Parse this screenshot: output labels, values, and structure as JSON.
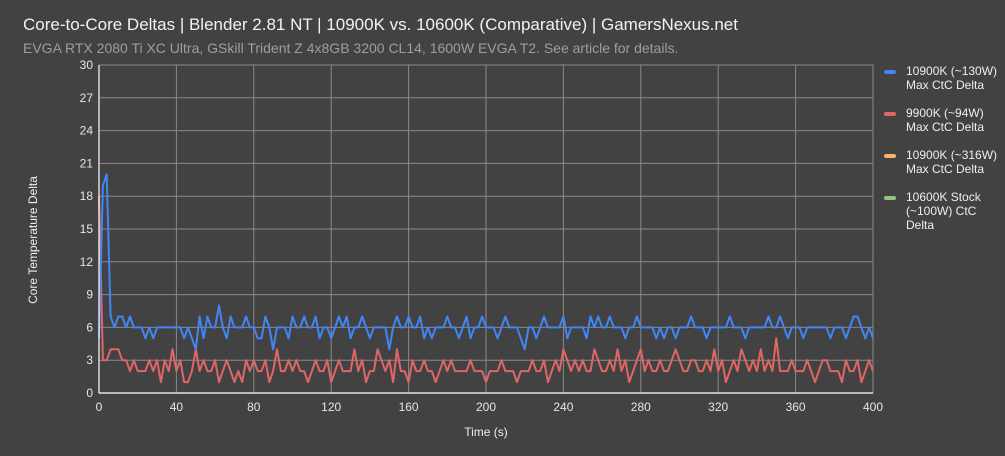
{
  "chart_data": {
    "type": "line",
    "title": "Core-to-Core Deltas | Blender 2.81 NT | 10900K vs. 10600K (Comparative) | GamersNexus.net",
    "subtitle": "EVGA RTX 2080 Ti XC Ultra, GSkill Trident Z 4x8GB 3200 CL14, 1600W EVGA T2. See article for details.",
    "xlabel": "Time (s)",
    "ylabel": "Core Temperature Delta",
    "xlim": [
      0,
      400
    ],
    "ylim": [
      0,
      30
    ],
    "xticks": [
      0,
      40,
      80,
      120,
      160,
      200,
      240,
      280,
      320,
      360,
      400
    ],
    "yticks": [
      0,
      3,
      6,
      9,
      12,
      15,
      18,
      21,
      24,
      27,
      30
    ],
    "grid": true,
    "legend_position": "right",
    "x_step": 2,
    "series": [
      {
        "name": "10900K (~130W) Max CtC Delta",
        "color": "#4285f4",
        "values": [
          5,
          19,
          20,
          7,
          6,
          7,
          7,
          6,
          7,
          6,
          6,
          6,
          5,
          6,
          5,
          6,
          6,
          6,
          6,
          6,
          6,
          6,
          5,
          6,
          5,
          4,
          7,
          5,
          7,
          6,
          6,
          8,
          6,
          5,
          7,
          6,
          6,
          6,
          7,
          6,
          6,
          5,
          5,
          7,
          6,
          4,
          6,
          6,
          6,
          5,
          7,
          6,
          6,
          7,
          6,
          6,
          7,
          5,
          6,
          6,
          5,
          6,
          7,
          6,
          7,
          5,
          6,
          6,
          7,
          6,
          5,
          6,
          6,
          6,
          6,
          4,
          6,
          7,
          6,
          6,
          7,
          6,
          6,
          7,
          5,
          6,
          5,
          6,
          6,
          6,
          7,
          6,
          6,
          5,
          6,
          7,
          5,
          6,
          6,
          7,
          6,
          6,
          6,
          5,
          6,
          7,
          6,
          6,
          6,
          5,
          4,
          6,
          6,
          5,
          6,
          7,
          6,
          6,
          6,
          6,
          7,
          5,
          6,
          6,
          6,
          6,
          5,
          7,
          6,
          7,
          6,
          6,
          7,
          6,
          6,
          6,
          5,
          6,
          6,
          7,
          6,
          6,
          6,
          6,
          5,
          6,
          5,
          6,
          6,
          5,
          6,
          6,
          6,
          7,
          6,
          6,
          6,
          5,
          6,
          6,
          6,
          6,
          6,
          7,
          6,
          6,
          6,
          5,
          6,
          6,
          6,
          6,
          6,
          7,
          6,
          6,
          7,
          6,
          5,
          6,
          6,
          6,
          5,
          6,
          6,
          6,
          6,
          6,
          6,
          5,
          6,
          6,
          6,
          5,
          6,
          7,
          7,
          6,
          5,
          6,
          5
        ]
      },
      {
        "name": "9900K (~94W) Max CtC Delta",
        "color": "#e06666",
        "values": [
          18,
          3,
          3,
          4,
          4,
          4,
          3,
          3,
          2,
          3,
          2,
          2,
          2,
          3,
          2,
          3,
          1,
          3,
          2,
          4,
          2,
          3,
          1,
          1,
          2,
          4,
          2,
          3,
          2,
          2,
          3,
          1,
          2,
          3,
          2,
          1,
          2,
          1,
          3,
          2,
          3,
          2,
          2,
          3,
          1,
          2,
          4,
          2,
          2,
          3,
          2,
          3,
          2,
          2,
          1,
          2,
          3,
          2,
          2,
          3,
          1,
          2,
          3,
          2,
          2,
          2,
          4,
          2,
          3,
          1,
          2,
          2,
          4,
          3,
          2,
          3,
          1,
          4,
          2,
          2,
          1,
          3,
          2,
          2,
          3,
          2,
          2,
          1,
          2,
          3,
          2,
          3,
          2,
          2,
          2,
          2,
          3,
          2,
          2,
          2,
          1,
          2,
          2,
          2,
          3,
          2,
          2,
          2,
          1,
          2,
          2,
          2,
          3,
          2,
          2,
          3,
          1,
          2,
          3,
          2,
          4,
          3,
          2,
          3,
          2,
          3,
          2,
          2,
          4,
          3,
          2,
          2,
          3,
          2,
          4,
          2,
          3,
          1,
          2,
          3,
          4,
          2,
          3,
          2,
          2,
          3,
          2,
          2,
          3,
          4,
          3,
          2,
          2,
          3,
          3,
          2,
          2,
          3,
          2,
          4,
          2,
          3,
          1,
          2,
          3,
          2,
          4,
          3,
          2,
          3,
          2,
          4,
          2,
          3,
          2,
          5,
          2,
          2,
          2,
          3,
          2,
          2,
          2,
          3,
          2,
          1,
          2,
          3,
          3,
          2,
          2,
          2,
          1,
          3,
          2,
          2,
          3,
          1,
          2,
          3,
          2
        ]
      },
      {
        "name": "10900K (~316W) Max CtC Delta",
        "color": "#f6b26b",
        "values": []
      },
      {
        "name": "10600K Stock (~100W) CtC Delta",
        "color": "#93c47d",
        "values": []
      }
    ]
  }
}
